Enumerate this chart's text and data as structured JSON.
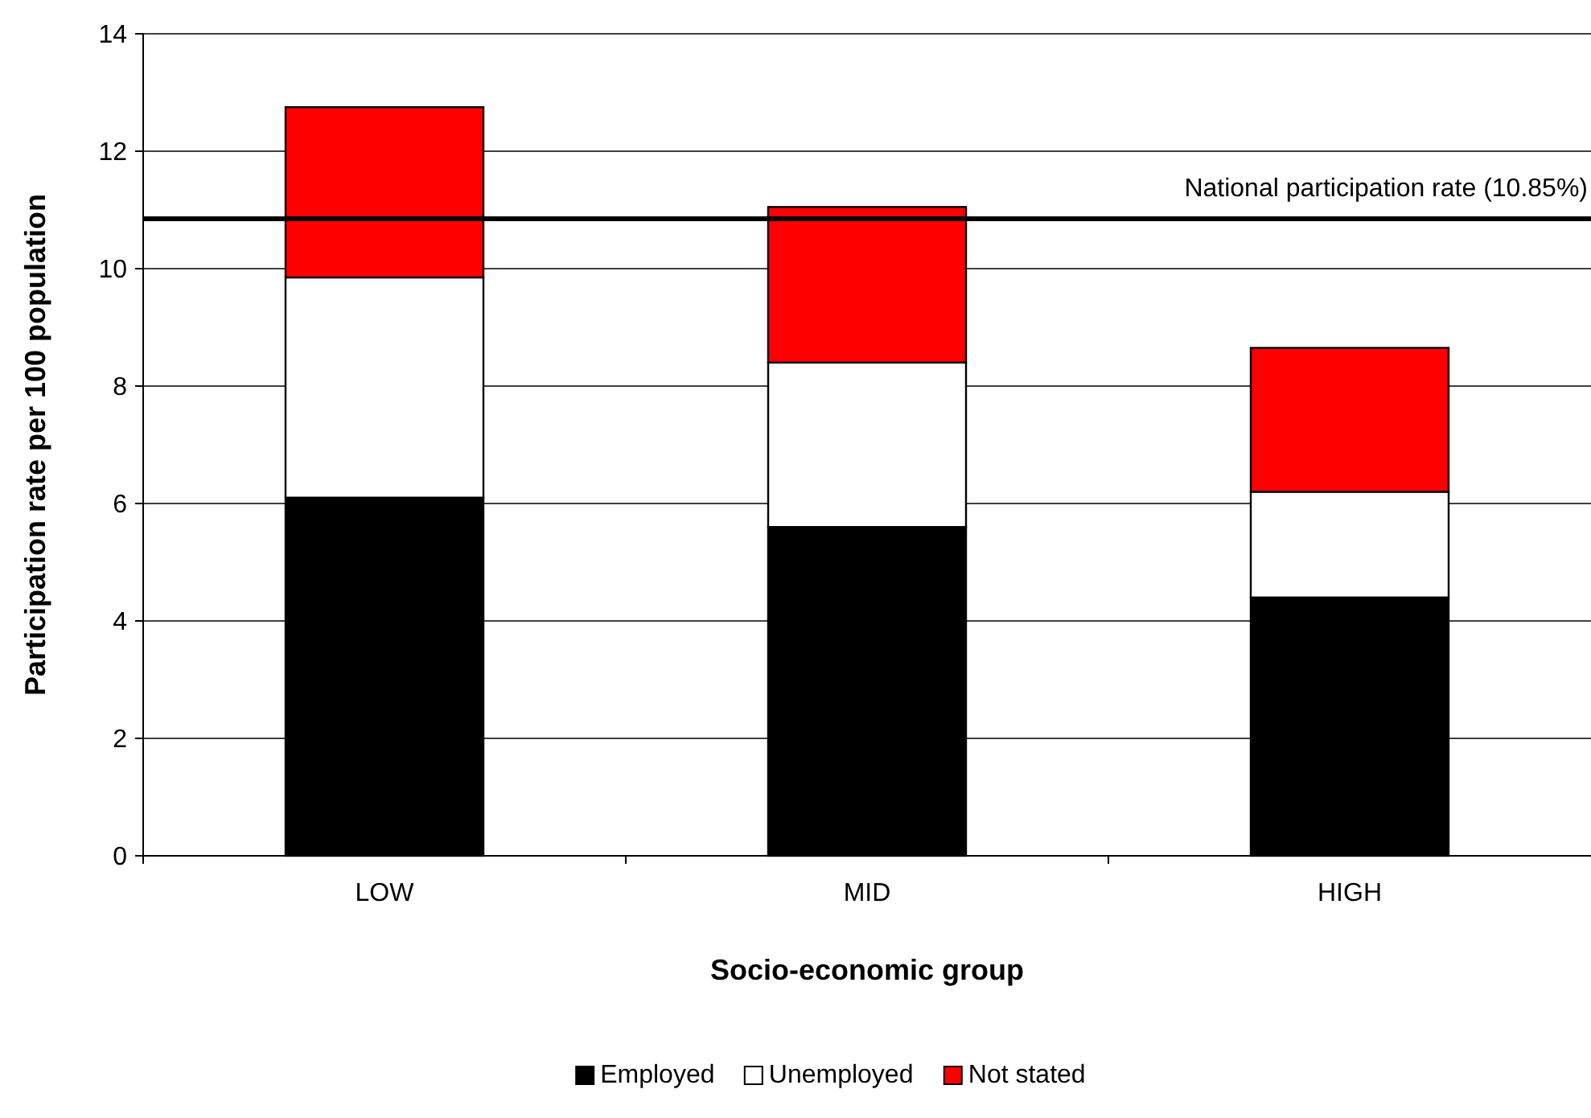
{
  "chart_data": {
    "type": "bar",
    "stacked": true,
    "xlabel": "Socio-economic group",
    "ylabel": "Participation rate per 100 population",
    "categories": [
      "LOW",
      "MID",
      "HIGH"
    ],
    "series": [
      {
        "name": "Employed",
        "color": "#000000",
        "values": [
          6.1,
          5.6,
          4.4
        ]
      },
      {
        "name": "Unemployed",
        "color": "#ffffff",
        "values": [
          3.75,
          2.8,
          1.8
        ]
      },
      {
        "name": "Not stated",
        "color": "#ff0000",
        "values": [
          2.9,
          2.65,
          2.45
        ]
      }
    ],
    "ylim": [
      0,
      14
    ],
    "yticks": [
      0,
      2,
      4,
      6,
      8,
      10,
      12,
      14
    ],
    "grid": "y",
    "legend": "bottom",
    "ref_lines": [
      {
        "axis": "y",
        "value": 10.85,
        "label": "National participation rate (10.85%)",
        "color": "#000000"
      }
    ]
  }
}
